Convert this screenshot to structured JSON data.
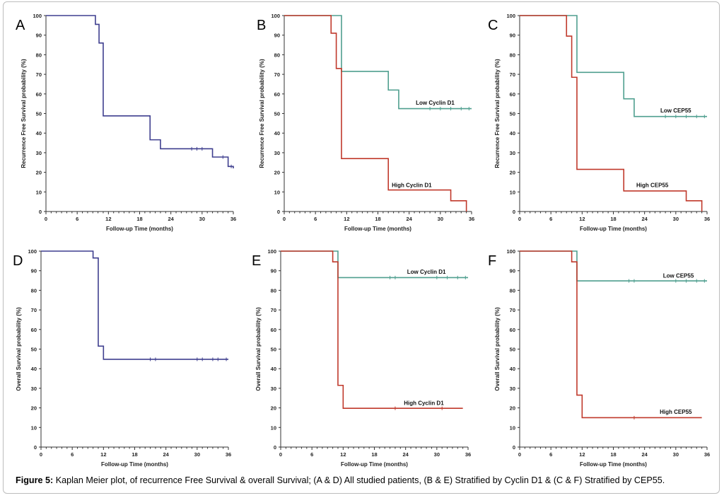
{
  "caption": {
    "label": "Figure 5:",
    "text": "Kaplan Meier plot, of recurrence Free Survival & overall Survival; (A & D) All studied patients, (B & E) Stratified by Cyclin D1 & (C & F) Stratified by CEP55."
  },
  "colors": {
    "navy": "#3f3f8f",
    "green": "#4f9f8f",
    "red": "#c0392b",
    "axis": "#333333"
  },
  "chart_data": [
    {
      "panel": "A",
      "type": "line",
      "xlabel": "Follow-up Time (months)",
      "ylabel": "Recurrence Free Survival probability (%)",
      "xlim": [
        0,
        36
      ],
      "ylim": [
        0,
        100
      ],
      "xticks": [
        0,
        6,
        12,
        18,
        24,
        30,
        36
      ],
      "yticks": [
        0,
        10,
        20,
        30,
        40,
        50,
        60,
        70,
        80,
        90,
        100
      ],
      "series": [
        {
          "color": "navy",
          "label": "",
          "label_at": [
            0,
            0
          ],
          "steps": [
            [
              0,
              100
            ],
            [
              9.5,
              95.5
            ],
            [
              10.2,
              86
            ],
            [
              11,
              48.8
            ],
            [
              20,
              36.6
            ],
            [
              22,
              32
            ],
            [
              32,
              27.8
            ],
            [
              35,
              23
            ],
            [
              36,
              22
            ]
          ],
          "censors": [
            [
              28,
              32
            ],
            [
              29,
              32
            ],
            [
              30,
              32
            ],
            [
              34,
              27.8
            ],
            [
              35.6,
              23
            ]
          ]
        }
      ]
    },
    {
      "panel": "B",
      "type": "line",
      "xlabel": "Follow-up Time (months)",
      "ylabel": "Recurrence Free Survival probability (%)",
      "xlim": [
        0,
        36
      ],
      "ylim": [
        0,
        100
      ],
      "xticks": [
        0,
        6,
        12,
        18,
        24,
        30,
        36
      ],
      "yticks": [
        0,
        10,
        20,
        30,
        40,
        50,
        60,
        70,
        80,
        90,
        100
      ],
      "series": [
        {
          "color": "green",
          "label": "Low Cyclin D1",
          "label_at": [
            29,
            54.5
          ],
          "steps": [
            [
              0,
              100
            ],
            [
              11,
              71.5
            ],
            [
              20,
              62
            ],
            [
              22,
              52.5
            ],
            [
              36,
              52.5
            ]
          ],
          "censors": [
            [
              28,
              52.5
            ],
            [
              30,
              52.5
            ],
            [
              32,
              52.5
            ],
            [
              34,
              52.5
            ],
            [
              35.5,
              52.5
            ]
          ]
        },
        {
          "color": "red",
          "label": "High Cyclin D1",
          "label_at": [
            24.5,
            12.5
          ],
          "steps": [
            [
              0,
              100
            ],
            [
              9,
              91
            ],
            [
              10,
              73
            ],
            [
              11,
              27
            ],
            [
              20,
              11
            ],
            [
              32,
              5.5
            ],
            [
              35,
              0
            ],
            [
              35,
              0
            ]
          ],
          "censors": []
        }
      ]
    },
    {
      "panel": "C",
      "type": "line",
      "xlabel": "Follow-up Time (months)",
      "ylabel": "Recurrence Free Survival probability (%)",
      "xlim": [
        0,
        36
      ],
      "ylim": [
        0,
        100
      ],
      "xticks": [
        0,
        6,
        12,
        18,
        24,
        30,
        36
      ],
      "yticks": [
        0,
        10,
        20,
        30,
        40,
        50,
        60,
        70,
        80,
        90,
        100
      ],
      "series": [
        {
          "color": "green",
          "label": "Low CEP55",
          "label_at": [
            30,
            50.5
          ],
          "steps": [
            [
              0,
              100
            ],
            [
              11,
              71
            ],
            [
              20,
              57.5
            ],
            [
              22,
              48.5
            ],
            [
              36,
              48.5
            ]
          ],
          "censors": [
            [
              28,
              48.5
            ],
            [
              30,
              48.5
            ],
            [
              32,
              48.5
            ],
            [
              34,
              48.5
            ],
            [
              35.5,
              48.5
            ]
          ]
        },
        {
          "color": "red",
          "label": "High CEP55",
          "label_at": [
            25.5,
            12.5
          ],
          "steps": [
            [
              0,
              100
            ],
            [
              9,
              89.5
            ],
            [
              10,
              68.5
            ],
            [
              11,
              21.5
            ],
            [
              20,
              10.5
            ],
            [
              32,
              5.5
            ],
            [
              35,
              0
            ],
            [
              35,
              0
            ]
          ],
          "censors": []
        }
      ]
    },
    {
      "panel": "D",
      "type": "line",
      "xlabel": "Follow-up Time (months)",
      "ylabel": "Overall Survival probability (%)",
      "xlim": [
        0,
        36
      ],
      "ylim": [
        0,
        100
      ],
      "xticks": [
        0,
        6,
        12,
        18,
        24,
        30,
        36
      ],
      "yticks": [
        0,
        10,
        20,
        30,
        40,
        50,
        60,
        70,
        80,
        90,
        100
      ],
      "series": [
        {
          "color": "navy",
          "label": "",
          "label_at": [
            0,
            0
          ],
          "steps": [
            [
              0,
              100
            ],
            [
              10,
              96.5
            ],
            [
              11,
              51.5
            ],
            [
              12,
              44.8
            ],
            [
              36,
              44.8
            ]
          ],
          "censors": [
            [
              21,
              44.8
            ],
            [
              22,
              44.8
            ],
            [
              30,
              44.8
            ],
            [
              31,
              44.8
            ],
            [
              33,
              44.8
            ],
            [
              34,
              44.8
            ],
            [
              35.6,
              44.8
            ]
          ]
        }
      ]
    },
    {
      "panel": "E",
      "type": "line",
      "xlabel": "Follow-up Time (months)",
      "ylabel": "Overall Survival probability (%)",
      "xlim": [
        0,
        36
      ],
      "ylim": [
        0,
        100
      ],
      "xticks": [
        0,
        6,
        12,
        18,
        24,
        30,
        36
      ],
      "yticks": [
        0,
        10,
        20,
        30,
        40,
        50,
        60,
        70,
        80,
        90,
        100
      ],
      "series": [
        {
          "color": "green",
          "label": "Low Cyclin D1",
          "label_at": [
            28,
            88.5
          ],
          "steps": [
            [
              0,
              100
            ],
            [
              11,
              86.5
            ],
            [
              36,
              86.5
            ]
          ],
          "censors": [
            [
              21,
              86.5
            ],
            [
              22,
              86.5
            ],
            [
              30,
              86.5
            ],
            [
              32,
              86.5
            ],
            [
              34,
              86.5
            ],
            [
              35.5,
              86.5
            ]
          ]
        },
        {
          "color": "red",
          "label": "High Cyclin D1",
          "label_at": [
            27.5,
            21.5
          ],
          "steps": [
            [
              0,
              100
            ],
            [
              10,
              94.5
            ],
            [
              11,
              31.5
            ],
            [
              12,
              19.8
            ],
            [
              35,
              19.8
            ]
          ],
          "censors": [
            [
              22,
              19.8
            ],
            [
              31,
              19.8
            ]
          ]
        }
      ]
    },
    {
      "panel": "F",
      "type": "line",
      "xlabel": "Follow-up Time (months)",
      "ylabel": "Overall Survival probability (%)",
      "xlim": [
        0,
        36
      ],
      "ylim": [
        0,
        100
      ],
      "xticks": [
        0,
        6,
        12,
        18,
        24,
        30,
        36
      ],
      "yticks": [
        0,
        10,
        20,
        30,
        40,
        50,
        60,
        70,
        80,
        90,
        100
      ],
      "series": [
        {
          "color": "green",
          "label": "Low CEP55",
          "label_at": [
            30.5,
            86.5
          ],
          "steps": [
            [
              0,
              100
            ],
            [
              11,
              84.8
            ],
            [
              36,
              84.8
            ]
          ],
          "censors": [
            [
              21,
              84.8
            ],
            [
              22,
              84.8
            ],
            [
              30,
              84.8
            ],
            [
              32,
              84.8
            ],
            [
              34,
              84.8
            ],
            [
              35.5,
              84.8
            ]
          ]
        },
        {
          "color": "red",
          "label": "High CEP55",
          "label_at": [
            30,
            17
          ],
          "steps": [
            [
              0,
              100
            ],
            [
              10,
              94.5
            ],
            [
              11,
              26.5
            ],
            [
              12,
              15
            ],
            [
              35,
              15
            ]
          ],
          "censors": [
            [
              22,
              15
            ]
          ]
        }
      ]
    }
  ]
}
